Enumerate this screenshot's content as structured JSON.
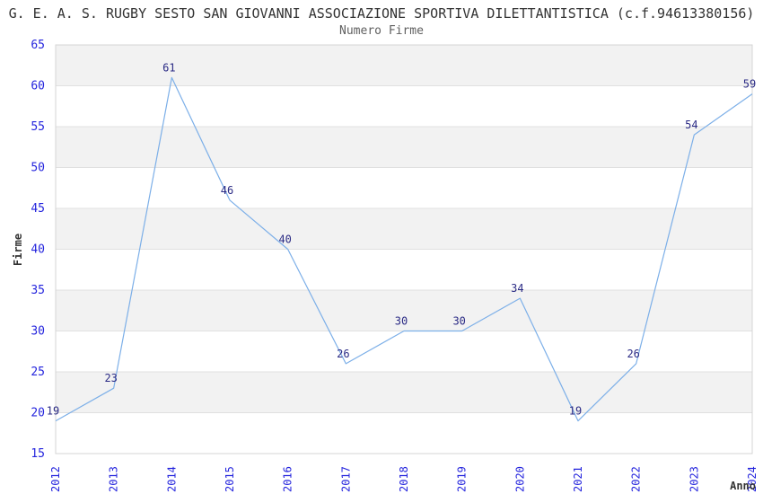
{
  "chart_data": {
    "type": "line",
    "title": "G. E. A. S. RUGBY SESTO SAN GIOVANNI ASSOCIAZIONE SPORTIVA DILETTANTISTICA (c.f.94613380156)",
    "subtitle": "Numero Firme",
    "categories": [
      "2012",
      "2013",
      "2014",
      "2015",
      "2016",
      "2017",
      "2018",
      "2019",
      "2020",
      "2021",
      "2022",
      "2023",
      "2024"
    ],
    "series": [
      {
        "name": "Firme",
        "values": [
          19,
          23,
          61,
          46,
          40,
          26,
          30,
          30,
          34,
          19,
          26,
          54,
          59
        ]
      }
    ],
    "xlabel": "Anno",
    "ylabel": "Firme",
    "ylim": [
      15,
      65
    ],
    "ytick_step": 5,
    "grid": "horizontal gridlines with alternating gray/white bands",
    "legend": "none",
    "data_labels": true,
    "colors": {
      "line": "#7cafe8",
      "tick_label": "#2525dd",
      "data_label": "#2b2b85",
      "band": "#f2f2f2",
      "gridline": "#e0e0e0",
      "border": "#d4d4d4",
      "title": "#333333",
      "subtitle": "#606060",
      "axis_title": "#333333",
      "background": "#ffffff"
    }
  }
}
